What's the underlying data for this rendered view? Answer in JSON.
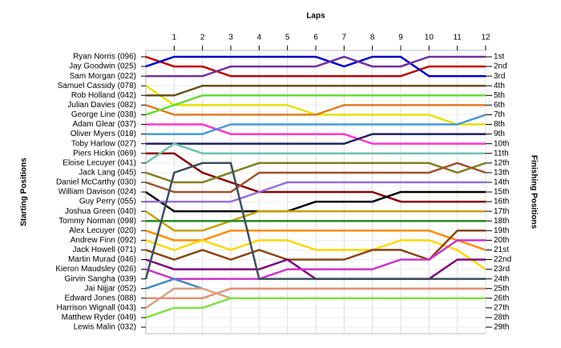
{
  "chart_data": {
    "type": "line",
    "xlabel": "Laps",
    "ylabel": "Starting Positions",
    "y2label": "Finishing Positions",
    "x": [
      0,
      1,
      2,
      3,
      4,
      5,
      6,
      7,
      8,
      9,
      10,
      11,
      12
    ],
    "xlim": [
      0,
      12
    ],
    "xticks": [
      1,
      2,
      3,
      4,
      5,
      6,
      7,
      8,
      9,
      10,
      11,
      12
    ],
    "ylim": [
      1,
      29
    ],
    "grid": true,
    "yticks": [
      {
        "value": 1,
        "label": "1st"
      },
      {
        "value": 2,
        "label": "2nd"
      },
      {
        "value": 3,
        "label": "3rd"
      },
      {
        "value": 4,
        "label": "4th"
      },
      {
        "value": 5,
        "label": "5th"
      },
      {
        "value": 6,
        "label": "6th"
      },
      {
        "value": 7,
        "label": "7th"
      },
      {
        "value": 8,
        "label": "8th"
      },
      {
        "value": 9,
        "label": "9th"
      },
      {
        "value": 10,
        "label": "10th"
      },
      {
        "value": 11,
        "label": "11th"
      },
      {
        "value": 12,
        "label": "12th"
      },
      {
        "value": 13,
        "label": "13th"
      },
      {
        "value": 14,
        "label": "14th"
      },
      {
        "value": 15,
        "label": "15th"
      },
      {
        "value": 16,
        "label": "16th"
      },
      {
        "value": 17,
        "label": "17th"
      },
      {
        "value": 18,
        "label": "18th"
      },
      {
        "value": 19,
        "label": "19th"
      },
      {
        "value": 20,
        "label": "20th"
      },
      {
        "value": 21,
        "label": "21st"
      },
      {
        "value": 22,
        "label": "22nd"
      },
      {
        "value": 23,
        "label": "23rd"
      },
      {
        "value": 24,
        "label": "24th"
      },
      {
        "value": 25,
        "label": "25th"
      },
      {
        "value": 26,
        "label": "26th"
      },
      {
        "value": 27,
        "label": "27th"
      },
      {
        "value": 28,
        "label": "28th"
      },
      {
        "value": 29,
        "label": "29th"
      }
    ],
    "series": [
      {
        "name": "Ryan Norris (096)",
        "color": "#c00000",
        "values": [
          1,
          2,
          2,
          3,
          3,
          3,
          3,
          3,
          3,
          3,
          2,
          2,
          2
        ]
      },
      {
        "name": "Jay Goodwin (025)",
        "color": "#0000cc",
        "values": [
          2,
          1,
          1,
          1,
          1,
          1,
          1,
          2,
          1,
          1,
          3,
          3,
          3
        ]
      },
      {
        "name": "Sam Morgan (022)",
        "color": "#7030a0",
        "values": [
          3,
          3,
          3,
          2,
          2,
          2,
          2,
          1,
          2,
          2,
          1,
          1,
          1
        ]
      },
      {
        "name": "Samuel Cassidy (078)",
        "color": "#e8e000",
        "values": [
          4,
          6,
          6,
          6,
          6,
          6,
          7,
          7,
          7,
          7,
          7,
          8,
          8
        ]
      },
      {
        "name": "Rob Holland (042)",
        "color": "#6b4f1d",
        "values": [
          5,
          5,
          4,
          4,
          4,
          4,
          4,
          4,
          4,
          4,
          4,
          4,
          4
        ]
      },
      {
        "name": "Julian Davies (082)",
        "color": "#e07b20",
        "values": [
          6,
          7,
          7,
          7,
          7,
          7,
          7,
          6,
          6,
          6,
          6,
          6,
          6
        ]
      },
      {
        "name": "George Line (038)",
        "color": "#66dd33",
        "values": [
          7,
          6,
          5,
          5,
          5,
          5,
          5,
          5,
          5,
          5,
          5,
          5,
          5
        ]
      },
      {
        "name": "Adam Glear (037)",
        "color": "#ff33cc",
        "values": [
          8,
          8,
          8,
          9,
          9,
          9,
          9,
          9,
          10,
          10,
          10,
          10,
          10
        ]
      },
      {
        "name": "Oliver Myers (018)",
        "color": "#4499dd",
        "values": [
          9,
          9,
          9,
          8,
          8,
          8,
          8,
          8,
          8,
          8,
          8,
          8,
          7
        ]
      },
      {
        "name": "Toby Harlow (027)",
        "color": "#1f1f5f",
        "values": [
          10,
          10,
          10,
          10,
          10,
          10,
          10,
          10,
          9,
          9,
          9,
          9,
          9
        ]
      },
      {
        "name": "Piers Hickin (069)",
        "color": "#8b0000",
        "values": [
          11,
          11,
          13,
          14,
          15,
          15,
          15,
          15,
          15,
          16,
          16,
          16,
          16
        ]
      },
      {
        "name": "Eloise Lecuyer (041)",
        "color": "#70c0b0",
        "values": [
          12,
          10,
          11,
          11,
          11,
          11,
          11,
          11,
          11,
          11,
          11,
          11,
          11
        ]
      },
      {
        "name": "Jack Lang (045)",
        "color": "#808020",
        "values": [
          13,
          14,
          14,
          13,
          12,
          12,
          12,
          12,
          12,
          12,
          12,
          13,
          12
        ]
      },
      {
        "name": "Daniel McCarthy (030)",
        "color": "#a0522d",
        "values": [
          14,
          15,
          15,
          15,
          13,
          13,
          13,
          13,
          13,
          13,
          13,
          12,
          13
        ]
      },
      {
        "name": "William Davison (024)",
        "color": "#000000",
        "values": [
          15,
          17,
          17,
          17,
          17,
          17,
          16,
          16,
          16,
          15,
          15,
          15,
          15
        ]
      },
      {
        "name": "Guy Perry (055)",
        "color": "#9370db",
        "values": [
          16,
          16,
          16,
          16,
          15,
          14,
          14,
          14,
          14,
          14,
          14,
          14,
          14
        ]
      },
      {
        "name": "Joshua Green (040)",
        "color": "#c8a000",
        "values": [
          17,
          19,
          19,
          18,
          17,
          17,
          17,
          17,
          17,
          17,
          17,
          17,
          17
        ]
      },
      {
        "name": "Tommy Norman (098)",
        "color": "#228b22",
        "values": [
          18,
          18,
          18,
          18,
          18,
          18,
          18,
          18,
          18,
          18,
          18,
          18,
          18
        ]
      },
      {
        "name": "Alex Lecuyer (020)",
        "color": "#ff8c00",
        "values": [
          19,
          20,
          20,
          19,
          19,
          19,
          19,
          19,
          19,
          19,
          19,
          20,
          21
        ]
      },
      {
        "name": "Andrew Finn (092)",
        "color": "#ffd700",
        "values": [
          20,
          21,
          20,
          21,
          20,
          20,
          21,
          21,
          21,
          20,
          20,
          21,
          23
        ]
      },
      {
        "name": "Jack Howell (071)",
        "color": "#8b4513",
        "values": [
          21,
          22,
          21,
          22,
          21,
          22,
          22,
          22,
          21,
          21,
          22,
          19,
          19
        ]
      },
      {
        "name": "Martin Murad (046)",
        "color": "#800080",
        "values": [
          22,
          23,
          23,
          23,
          23,
          22,
          24,
          24,
          24,
          24,
          24,
          22,
          22
        ]
      },
      {
        "name": "Kieron Maudsley (026)",
        "color": "#cc33cc",
        "values": [
          23,
          24,
          24,
          24,
          24,
          23,
          23,
          23,
          23,
          22,
          22,
          20,
          20
        ]
      },
      {
        "name": "Girvin Sangha (039)",
        "color": "#3b4f5f",
        "values": [
          24,
          13,
          12,
          12,
          24,
          24,
          24,
          24,
          24,
          24,
          24,
          24,
          24
        ]
      },
      {
        "name": "Jai Nijjar (052)",
        "color": "#4488cc",
        "values": [
          25,
          24,
          25,
          null,
          null,
          null,
          null,
          null,
          null,
          null,
          null,
          null,
          null
        ]
      },
      {
        "name": "Edward Jones (088)",
        "color": "#e09070",
        "values": [
          26,
          26,
          26,
          25,
          25,
          25,
          25,
          25,
          25,
          25,
          25,
          25,
          25
        ]
      },
      {
        "name": "Harrison Wignall (043)",
        "color": "#d8a080",
        "values": [
          27,
          25,
          25,
          26,
          26,
          26,
          26,
          26,
          26,
          26,
          26,
          26,
          26
        ]
      },
      {
        "name": "Matthew Ryder (049)",
        "color": "#80e040",
        "values": [
          28,
          27,
          27,
          26,
          26,
          26,
          26,
          26,
          26,
          26,
          26,
          26,
          26
        ]
      },
      {
        "name": "Lewis Malin (032)",
        "color": "#999999",
        "values": [
          29,
          null,
          null,
          null,
          null,
          null,
          null,
          null,
          null,
          null,
          null,
          null,
          null
        ]
      }
    ]
  }
}
